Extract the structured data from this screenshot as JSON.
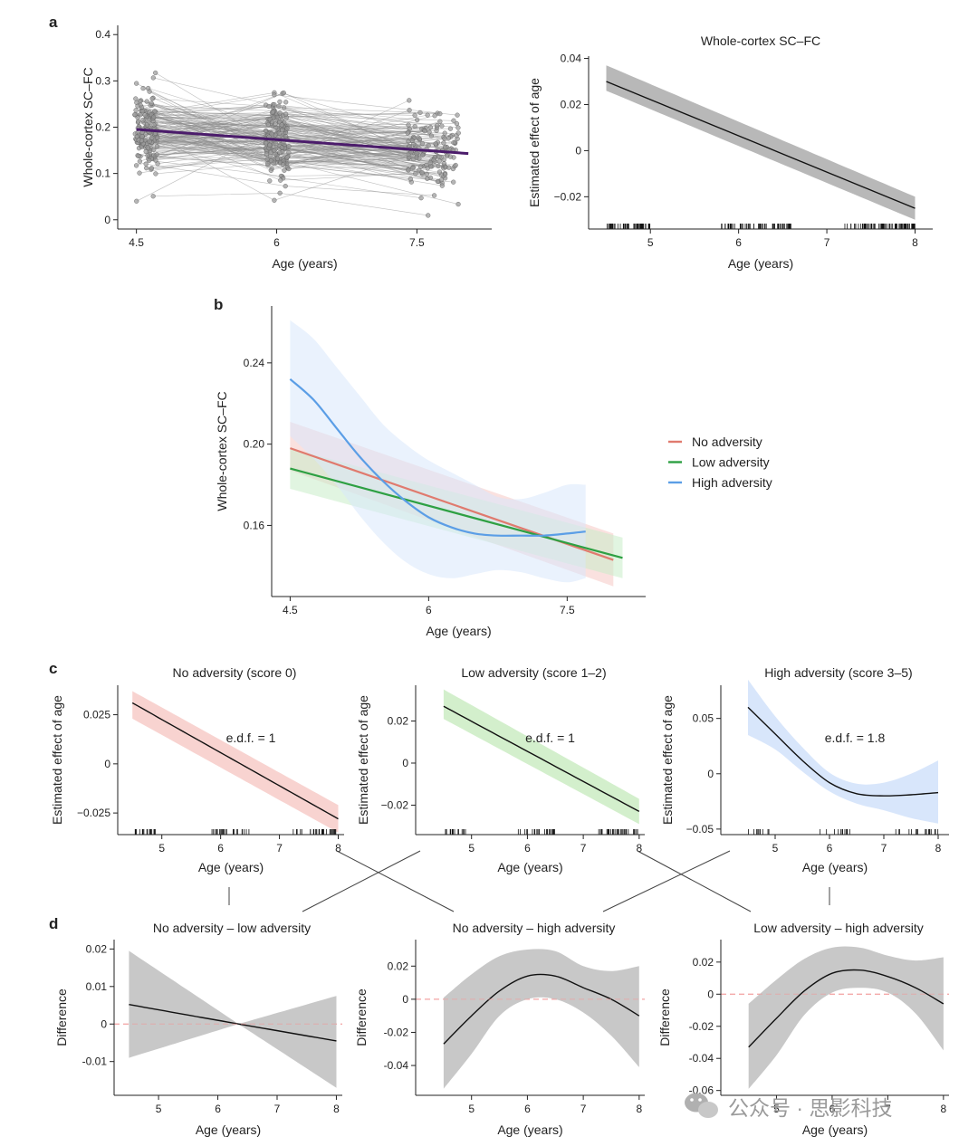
{
  "panel_labels": [
    "a",
    "b",
    "c",
    "d"
  ],
  "watermark": {
    "text": "公众号 · 思影科技"
  },
  "chart_data": [
    {
      "id": "a-left",
      "type": "scatter",
      "panel": "a",
      "title": "",
      "xlabel": "Age (years)",
      "ylabel": "Whole-cortex SC–FC",
      "xlim": [
        4.3,
        8.3
      ],
      "ylim": [
        -0.02,
        0.42
      ],
      "xticks": [
        4.5,
        6,
        7.5
      ],
      "xtick_labels": [
        "4.5",
        "6",
        "7.5"
      ],
      "yticks": [
        0,
        0.1,
        0.2,
        0.3,
        0.4
      ],
      "ytick_labels": [
        "0",
        "0.1",
        "0.2",
        "0.3",
        "0.4"
      ],
      "waves": [
        {
          "x": 4.6,
          "mean": 0.19,
          "sd": 0.045,
          "n": 120
        },
        {
          "x": 6.0,
          "mean": 0.17,
          "sd": 0.042,
          "n": 120
        },
        {
          "x": 7.45,
          "mean": 0.15,
          "sd": 0.04,
          "n": 140
        }
      ],
      "trajectories": 180,
      "fit": {
        "x": [
          4.5,
          8.05
        ],
        "y": [
          0.195,
          0.143
        ],
        "color": "#4b1c6b"
      }
    },
    {
      "id": "a-right",
      "type": "line",
      "panel": "a",
      "title": "Whole-cortex SC–FC",
      "xlabel": "Age (years)",
      "ylabel": "Estimated effect of age",
      "xlim": [
        4.3,
        8.2
      ],
      "ylim": [
        -0.034,
        0.041
      ],
      "xticks": [
        5,
        6,
        7,
        8
      ],
      "xtick_labels": [
        "5",
        "6",
        "7",
        "8"
      ],
      "yticks": [
        -0.02,
        0,
        0.02,
        0.04
      ],
      "ytick_labels": [
        "−0.02",
        "0",
        "0.02",
        "0.04"
      ],
      "fit_x": [
        4.5,
        8.0
      ],
      "fit_y": [
        0.03,
        -0.025
      ],
      "band_lo": [
        0.026,
        -0.03
      ],
      "band_hi": [
        0.037,
        -0.02
      ],
      "band_color": "#b8b8b8",
      "line_color": "#111111",
      "rug": [
        {
          "x0": 4.5,
          "x1": 5.0,
          "n": 55
        },
        {
          "x0": 5.8,
          "x1": 6.6,
          "n": 70
        },
        {
          "x0": 7.2,
          "x1": 8.0,
          "n": 90
        }
      ]
    },
    {
      "id": "b",
      "type": "line",
      "panel": "b",
      "title": "",
      "xlabel": "Age (years)",
      "ylabel": "Whole-cortex SC–FC",
      "xlim": [
        4.3,
        8.35
      ],
      "ylim": [
        0.125,
        0.268
      ],
      "xticks": [
        4.5,
        6,
        7.5
      ],
      "xtick_labels": [
        "4.5",
        "6",
        "7.5"
      ],
      "yticks": [
        0.16,
        0.2,
        0.24
      ],
      "ytick_labels": [
        "0.16",
        "0.20",
        "0.24"
      ],
      "legend": {
        "placement": "right",
        "entries": [
          "No adversity",
          "Low adversity",
          "High adversity"
        ]
      },
      "series": [
        {
          "name": "No adversity",
          "color": "#e07a6e",
          "band_color": "#f6c9c4",
          "x": [
            4.5,
            8.0
          ],
          "y": [
            0.198,
            0.143
          ],
          "lo": [
            0.187,
            0.13
          ],
          "hi": [
            0.211,
            0.156
          ]
        },
        {
          "name": "Low adversity",
          "color": "#2ea043",
          "band_color": "#c8ecc8",
          "x": [
            4.5,
            8.1
          ],
          "y": [
            0.188,
            0.144
          ],
          "lo": [
            0.178,
            0.134
          ],
          "hi": [
            0.198,
            0.154
          ]
        },
        {
          "name": "High adversity",
          "color": "#5b9ee6",
          "band_color": "#d8e7fb",
          "x": [
            4.5,
            4.75,
            5.0,
            5.25,
            5.5,
            5.75,
            6.0,
            6.25,
            6.5,
            6.75,
            7.0,
            7.25,
            7.5,
            7.7
          ],
          "y": [
            0.232,
            0.222,
            0.208,
            0.194,
            0.182,
            0.172,
            0.164,
            0.159,
            0.156,
            0.155,
            0.155,
            0.155,
            0.156,
            0.157
          ],
          "lo": [
            0.204,
            0.193,
            0.18,
            0.165,
            0.152,
            0.142,
            0.136,
            0.134,
            0.136,
            0.138,
            0.137,
            0.134,
            0.132,
            0.134
          ],
          "hi": [
            0.261,
            0.252,
            0.238,
            0.224,
            0.21,
            0.2,
            0.192,
            0.186,
            0.18,
            0.174,
            0.173,
            0.176,
            0.18,
            0.18
          ]
        }
      ]
    },
    {
      "id": "c1",
      "type": "line",
      "panel": "c",
      "title": "No adversity (score 0)",
      "xlabel": "Age (years)",
      "ylabel": "Estimated effect of age",
      "annotation": "e.d.f. = 1",
      "xlim": [
        4.25,
        8.1
      ],
      "ylim": [
        -0.036,
        0.04
      ],
      "xticks": [
        5,
        6,
        7,
        8
      ],
      "xtick_labels": [
        "5",
        "6",
        "7",
        "8"
      ],
      "yticks": [
        -0.025,
        0,
        0.025
      ],
      "ytick_labels": [
        "−0.025",
        "0",
        "0.025"
      ],
      "fit_x": [
        4.5,
        8.0
      ],
      "fit_y": [
        0.031,
        -0.028
      ],
      "band_lo": [
        0.023,
        -0.035
      ],
      "band_hi": [
        0.037,
        -0.021
      ],
      "band_color": "#f8d3d0",
      "line_color": "#111111",
      "rug": [
        {
          "x0": 4.5,
          "x1": 4.9,
          "n": 18
        },
        {
          "x0": 5.8,
          "x1": 6.5,
          "n": 25
        },
        {
          "x0": 7.2,
          "x1": 8.0,
          "n": 35
        }
      ]
    },
    {
      "id": "c2",
      "type": "line",
      "panel": "c",
      "title": "Low adversity (score 1–2)",
      "xlabel": "Age (years)",
      "ylabel": "Estimated effect of age",
      "annotation": "e.d.f. = 1",
      "xlim": [
        4.0,
        8.1
      ],
      "ylim": [
        -0.034,
        0.037
      ],
      "xticks": [
        5,
        6,
        7,
        8
      ],
      "xtick_labels": [
        "5",
        "6",
        "7",
        "8"
      ],
      "yticks": [
        -0.02,
        0,
        0.02
      ],
      "ytick_labels": [
        "−0.02",
        "0",
        "0.02"
      ],
      "fit_x": [
        4.5,
        8.0
      ],
      "fit_y": [
        0.027,
        -0.023
      ],
      "band_lo": [
        0.021,
        -0.029
      ],
      "band_hi": [
        0.035,
        -0.017
      ],
      "band_color": "#d3efcc",
      "line_color": "#111111",
      "rug": [
        {
          "x0": 4.5,
          "x1": 4.9,
          "n": 18
        },
        {
          "x0": 5.8,
          "x1": 6.5,
          "n": 25
        },
        {
          "x0": 7.2,
          "x1": 8.0,
          "n": 35
        }
      ]
    },
    {
      "id": "c3",
      "type": "line",
      "panel": "c",
      "title": "High adversity (score 3–5)",
      "xlabel": "Age (years)",
      "ylabel": "Estimated effect of age",
      "annotation": "e.d.f. = 1.8",
      "xlim": [
        4.0,
        8.2
      ],
      "ylim": [
        -0.055,
        0.08
      ],
      "xticks": [
        5,
        6,
        7,
        8
      ],
      "xtick_labels": [
        "5",
        "6",
        "7",
        "8"
      ],
      "yticks": [
        -0.05,
        0,
        0.05
      ],
      "ytick_labels": [
        "−0.05",
        "0",
        "0.05"
      ],
      "fit_x": [
        4.5,
        5.0,
        5.5,
        6.0,
        6.5,
        7.0,
        7.5,
        8.0
      ],
      "fit_y": [
        0.06,
        0.036,
        0.012,
        -0.008,
        -0.018,
        -0.02,
        -0.019,
        -0.017
      ],
      "band_lo": [
        0.035,
        0.022,
        0.002,
        -0.016,
        -0.027,
        -0.033,
        -0.04,
        -0.045
      ],
      "band_hi": [
        0.085,
        0.052,
        0.024,
        0.001,
        -0.009,
        -0.008,
        0.0,
        0.012
      ],
      "band_color": "#d8e6fb",
      "line_color": "#111111",
      "rug": [
        {
          "x0": 4.5,
          "x1": 4.9,
          "n": 10
        },
        {
          "x0": 5.8,
          "x1": 6.4,
          "n": 12
        },
        {
          "x0": 7.2,
          "x1": 8.0,
          "n": 18
        }
      ]
    },
    {
      "id": "d1",
      "type": "line",
      "panel": "d",
      "title": "No adversity – low adversity",
      "xlabel": "Age (years)",
      "ylabel": "Difference",
      "xlim": [
        4.25,
        8.1
      ],
      "ylim": [
        -0.019,
        0.0225
      ],
      "xticks": [
        5,
        6,
        7,
        8
      ],
      "xtick_labels": [
        "5",
        "6",
        "7",
        "8"
      ],
      "yticks": [
        -0.01,
        0,
        0.01,
        0.02
      ],
      "ytick_labels": [
        "-0.01",
        "0",
        "0.01",
        "0.02"
      ],
      "fit_x": [
        4.5,
        6.35,
        8.0
      ],
      "fit_y": [
        0.0052,
        0.0,
        -0.0045
      ],
      "band_lo": [
        -0.009,
        0.0,
        -0.017
      ],
      "band_hi": [
        0.0195,
        0.0,
        0.0075
      ],
      "band_color": "#c8c8c8",
      "line_color": "#111111",
      "ref_line": 0
    },
    {
      "id": "d2",
      "type": "line",
      "panel": "d",
      "title": "No adversity – high adversity",
      "xlabel": "Age (years)",
      "ylabel": "Difference",
      "xlim": [
        4.0,
        8.1
      ],
      "ylim": [
        -0.058,
        0.036
      ],
      "xticks": [
        5,
        6,
        7,
        8
      ],
      "xtick_labels": [
        "5",
        "6",
        "7",
        "8"
      ],
      "yticks": [
        -0.04,
        -0.02,
        0,
        0.02
      ],
      "ytick_labels": [
        "-0.04",
        "-0.02",
        "0",
        "0.02"
      ],
      "fit_x": [
        4.5,
        5.0,
        5.5,
        6.0,
        6.5,
        7.0,
        7.5,
        8.0
      ],
      "fit_y": [
        -0.027,
        -0.01,
        0.005,
        0.014,
        0.014,
        0.007,
        0.0,
        -0.01
      ],
      "band_lo": [
        -0.054,
        -0.033,
        -0.01,
        0.0,
        0.0,
        -0.008,
        -0.022,
        -0.041
      ],
      "band_hi": [
        0.001,
        0.015,
        0.026,
        0.03,
        0.029,
        0.02,
        0.017,
        0.02
      ],
      "band_color": "#c8c8c8",
      "line_color": "#111111",
      "ref_line": 0
    },
    {
      "id": "d3",
      "type": "line",
      "panel": "d",
      "title": "Low adversity – high adversity",
      "xlabel": "Age (years)",
      "ylabel": "Difference",
      "xlim": [
        4.0,
        8.1
      ],
      "ylim": [
        -0.063,
        0.034
      ],
      "xticks": [
        5,
        6,
        7,
        8
      ],
      "xtick_labels": [
        "5",
        "6",
        "7",
        "8"
      ],
      "yticks": [
        -0.06,
        -0.04,
        -0.02,
        0,
        0.02
      ],
      "ytick_labels": [
        "-0.06",
        "-0.04",
        "-0.02",
        "0",
        "0.02"
      ],
      "fit_x": [
        4.5,
        5.0,
        5.5,
        6.0,
        6.5,
        7.0,
        7.5,
        8.0
      ],
      "fit_y": [
        -0.033,
        -0.015,
        0.002,
        0.013,
        0.015,
        0.011,
        0.004,
        -0.006
      ],
      "band_lo": [
        -0.059,
        -0.038,
        -0.013,
        0.001,
        0.004,
        0.001,
        -0.012,
        -0.035
      ],
      "band_hi": [
        -0.006,
        0.009,
        0.022,
        0.029,
        0.029,
        0.024,
        0.021,
        0.023
      ],
      "band_color": "#c8c8c8",
      "line_color": "#111111",
      "ref_line": 0
    }
  ]
}
